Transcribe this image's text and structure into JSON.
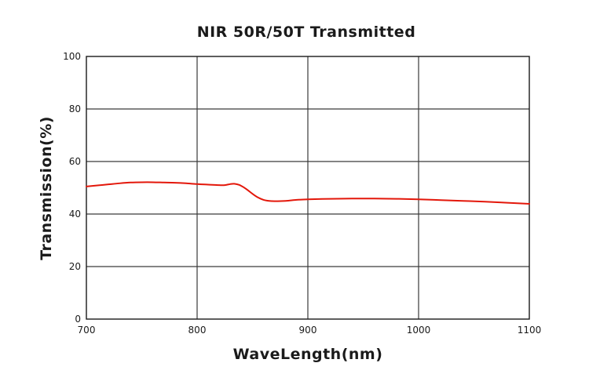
{
  "chart_data": {
    "type": "line",
    "title": "NIR 50R/50T Transmitted",
    "xlabel": "WaveLength(nm)",
    "ylabel": "Transmission(%)",
    "xlim": [
      700,
      1100
    ],
    "ylim": [
      0,
      100
    ],
    "xticks": [
      700,
      800,
      900,
      1000,
      1100
    ],
    "yticks": [
      0,
      20,
      40,
      60,
      80,
      100
    ],
    "grid": true,
    "series": [
      {
        "color": "#e3170a",
        "x": [
          700,
          710,
          720,
          730,
          740,
          750,
          760,
          770,
          780,
          790,
          800,
          810,
          820,
          825,
          830,
          834,
          838,
          842,
          846,
          850,
          855,
          860,
          865,
          870,
          880,
          890,
          900,
          920,
          940,
          960,
          980,
          1000,
          1020,
          1040,
          1060,
          1080,
          1100
        ],
        "y": [
          50.5,
          50.9,
          51.3,
          51.7,
          52.0,
          52.1,
          52.1,
          52.0,
          51.9,
          51.7,
          51.4,
          51.2,
          51.0,
          51.0,
          51.4,
          51.5,
          51.1,
          50.2,
          49.0,
          47.7,
          46.3,
          45.4,
          45.0,
          44.9,
          45.0,
          45.4,
          45.6,
          45.8,
          45.9,
          45.9,
          45.8,
          45.6,
          45.3,
          45.0,
          44.7,
          44.3,
          43.9
        ]
      }
    ]
  }
}
